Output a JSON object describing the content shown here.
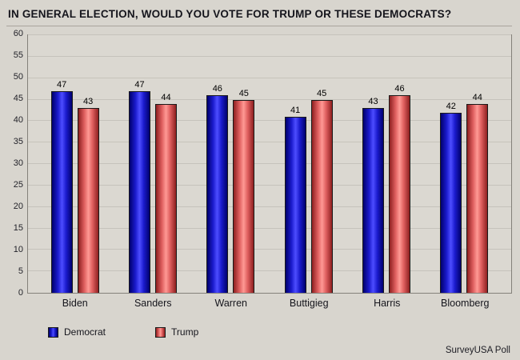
{
  "title": "IN GENERAL ELECTION, WOULD YOU VOTE FOR TRUMP OR THESE DEMOCRATS?",
  "footer": {
    "source": "SurveyUSA Poll"
  },
  "legend": [
    {
      "label": "Democrat",
      "color": "#2a2ae0"
    },
    {
      "label": "Trump",
      "color": "#ef8a84"
    }
  ],
  "chart_data": {
    "type": "bar",
    "categories": [
      "Biden",
      "Sanders",
      "Warren",
      "Buttigieg",
      "Harris",
      "Bloomberg"
    ],
    "series": [
      {
        "name": "Democrat",
        "color": "#2a2ae0",
        "values": [
          47,
          47,
          46,
          41,
          43,
          42
        ]
      },
      {
        "name": "Trump",
        "color": "#ef8a84",
        "values": [
          43,
          44,
          45,
          45,
          46,
          44
        ]
      }
    ],
    "title": "IN GENERAL ELECTION, WOULD YOU VOTE FOR TRUMP OR THESE DEMOCRATS?",
    "xlabel": "",
    "ylabel": "",
    "ylim": [
      0,
      60
    ],
    "ytick_step": 5,
    "grid": true,
    "legend_position": "bottom",
    "value_labels": true
  }
}
